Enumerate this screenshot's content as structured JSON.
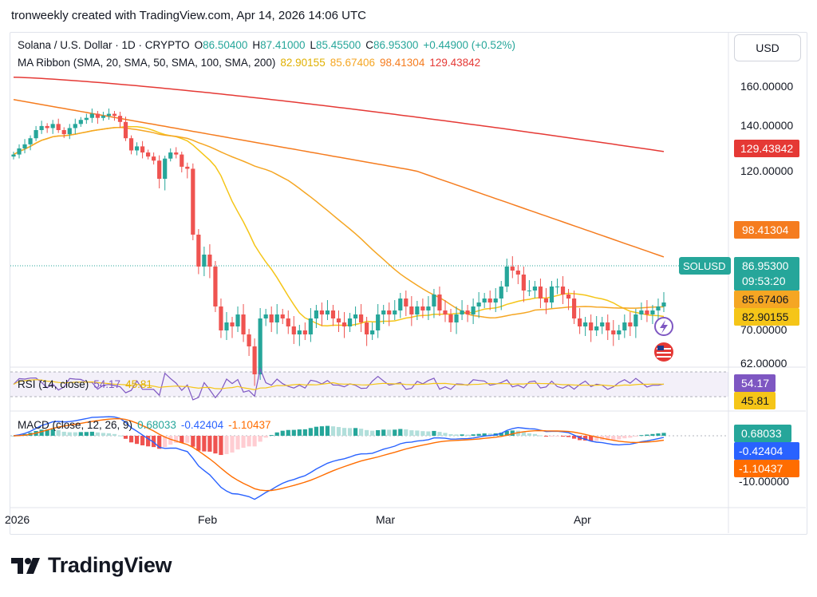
{
  "header": {
    "attribution": "tronweekly created with TradingView.com, Apr 14, 2026 14:06 UTC"
  },
  "legend": {
    "symbol": "Solana / U.S. Dollar · 1D · CRYPTO",
    "o_label": "O",
    "o": "86.50400",
    "h_label": "H",
    "h": "87.41000",
    "l_label": "L",
    "l": "85.45500",
    "c_label": "C",
    "c": "86.95300",
    "change": "+0.44900 (+0.52%)",
    "ma_title": "MA Ribbon (SMA, 20, SMA, 50, SMA, 100, SMA, 200)",
    "ma20": "82.90155",
    "ma50": "85.67406",
    "ma100": "98.41304",
    "ma200": "129.43842"
  },
  "currency_button": "USD",
  "price_axis": {
    "ticks": [
      "160.00000",
      "140.00000",
      "120.00000",
      "70.00000",
      "62.00000"
    ]
  },
  "price_labels": {
    "ma200": "129.43842",
    "ma100": "98.41304",
    "symbol": "SOLUSD",
    "last": "86.95300",
    "countdown": "09:53:20",
    "ma50": "85.67406",
    "ma20": "82.90155"
  },
  "rsi": {
    "title": "RSI (14, close)",
    "value": "54.17",
    "ma": "45.81"
  },
  "macd": {
    "title": "MACD (close, 12, 26, 9)",
    "hist": "0.68033",
    "macd": "-0.42404",
    "signal": "-1.10437",
    "axis_tick": "-10.00000"
  },
  "time_axis": [
    "2026",
    "Feb",
    "Mar",
    "Apr"
  ],
  "brand": "TradingView",
  "colors": {
    "up": "#26a69a",
    "down": "#ef5350",
    "ma20": "#f5c518",
    "ma50": "#f5a623",
    "ma100": "#f57c1f",
    "ma200": "#e53935",
    "rsi": "#7e57c2",
    "macd": "#2962ff",
    "signal": "#ff6d00"
  },
  "chart_data": {
    "type": "candlestick",
    "title": "Solana / U.S. Dollar · 1D · CRYPTO",
    "x_range": [
      "Jan 2026",
      "Apr 14 2026"
    ],
    "ohlc_close_approx": [
      128,
      131,
      133,
      136,
      140,
      142,
      141,
      143,
      140,
      138,
      141,
      143,
      145,
      146,
      148,
      146,
      147,
      148,
      147,
      144,
      136,
      130,
      132,
      129,
      127,
      125,
      118,
      126,
      129,
      128,
      122,
      121,
      104,
      96,
      99,
      96,
      86,
      80,
      82,
      81,
      84,
      79,
      76,
      69,
      83,
      84,
      82,
      84,
      83,
      81,
      79,
      80,
      79,
      83,
      85,
      84,
      85,
      83,
      82,
      81,
      83,
      84,
      82,
      79,
      80,
      84,
      85,
      84,
      85,
      88,
      86,
      84,
      86,
      85,
      86,
      89,
      85,
      84,
      82,
      84,
      85,
      84,
      86,
      87,
      88,
      87,
      88,
      91,
      96,
      95,
      94,
      90,
      90,
      91,
      88,
      87,
      91,
      91,
      89,
      88,
      83,
      81,
      82,
      80,
      81,
      82,
      80,
      79,
      80,
      82,
      81,
      84,
      85,
      84,
      85,
      86,
      87
    ],
    "series": [
      {
        "name": "MA 20",
        "last": 82.90155
      },
      {
        "name": "MA 50",
        "last": 85.67406
      },
      {
        "name": "MA 100",
        "last": 98.41304
      },
      {
        "name": "MA 200",
        "last": 129.43842
      }
    ],
    "rsi": {
      "value": 54.17,
      "ma": 45.81
    },
    "macd": {
      "histogram": 0.68033,
      "macd": -0.42404,
      "signal": -1.10437
    }
  }
}
